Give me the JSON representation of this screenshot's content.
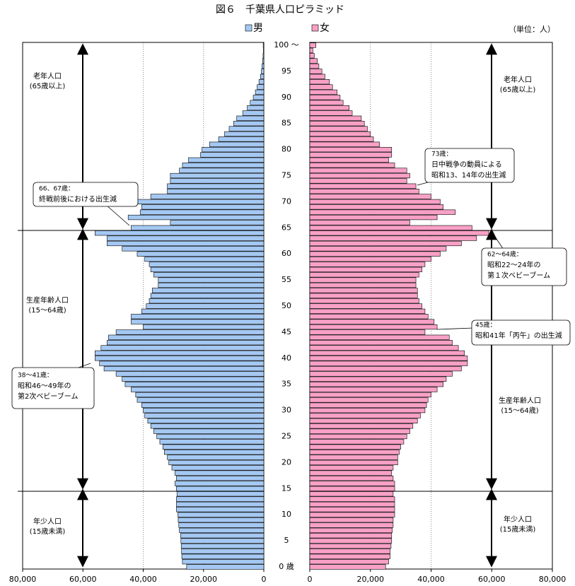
{
  "chart_data": {
    "type": "pyramid",
    "title": "図６　千葉県人口ピラミッド",
    "unit_note": "（単位：人）",
    "categories": [
      "0 歳",
      null,
      null,
      null,
      null,
      "5",
      null,
      null,
      null,
      null,
      "10",
      null,
      null,
      null,
      null,
      "15",
      null,
      null,
      null,
      null,
      "20",
      null,
      null,
      null,
      null,
      "25",
      null,
      null,
      null,
      null,
      "30",
      null,
      null,
      null,
      null,
      "35",
      null,
      null,
      null,
      null,
      "40",
      null,
      null,
      null,
      null,
      "45",
      null,
      null,
      null,
      null,
      "50",
      null,
      null,
      null,
      null,
      "55",
      null,
      null,
      null,
      null,
      "60",
      null,
      null,
      null,
      null,
      "65",
      null,
      null,
      null,
      null,
      "70",
      null,
      null,
      null,
      null,
      "75",
      null,
      null,
      null,
      null,
      "80",
      null,
      null,
      null,
      null,
      "85",
      null,
      null,
      null,
      null,
      "90",
      null,
      null,
      null,
      null,
      "95",
      null,
      null,
      null,
      null,
      "100 ～"
    ],
    "series": [
      {
        "name": "男",
        "color": "#a4c8f2",
        "values": [
          25600,
          27000,
          27200,
          27300,
          27400,
          27500,
          27600,
          28000,
          28200,
          28400,
          28500,
          29000,
          29000,
          29000,
          28800,
          29000,
          29500,
          29000,
          29500,
          30500,
          31500,
          32000,
          33000,
          33500,
          34500,
          35500,
          36500,
          37500,
          38500,
          39500,
          40000,
          40500,
          42000,
          42500,
          44000,
          46000,
          47000,
          49000,
          53000,
          54500,
          56000,
          56000,
          54000,
          52000,
          51500,
          49000,
          40000,
          44000,
          44000,
          40500,
          39000,
          38000,
          37500,
          37000,
          35000,
          35000,
          36500,
          37500,
          38000,
          39500,
          42000,
          47000,
          52000,
          52000,
          56000,
          44000,
          31000,
          45000,
          41000,
          40500,
          42000,
          37500,
          32000,
          32000,
          31000,
          31000,
          28000,
          27000,
          25000,
          21000,
          20500,
          18000,
          15000,
          13000,
          11500,
          10000,
          9000,
          7000,
          5500,
          4500,
          3500,
          2800,
          2200,
          1600,
          1100,
          800,
          600,
          400,
          250,
          150,
          200
        ]
      },
      {
        "name": "女",
        "color": "#f8a0c6",
        "values": [
          25000,
          26000,
          26500,
          26500,
          26800,
          27000,
          27000,
          27200,
          27500,
          27500,
          28000,
          28000,
          28000,
          28000,
          27500,
          28000,
          28000,
          27500,
          27000,
          27500,
          29000,
          29000,
          29500,
          30000,
          31000,
          32000,
          33000,
          34000,
          35500,
          36500,
          38000,
          38500,
          39000,
          40000,
          42000,
          44000,
          45000,
          47000,
          50000,
          52000,
          52000,
          51000,
          49000,
          47000,
          46000,
          38000,
          42000,
          41000,
          39000,
          38000,
          37000,
          36000,
          35500,
          35500,
          35000,
          35000,
          36000,
          37000,
          38000,
          40000,
          43000,
          45000,
          50000,
          55000,
          59000,
          53500,
          33000,
          42000,
          48000,
          44000,
          43000,
          40000,
          36000,
          35000,
          32000,
          33000,
          32000,
          28000,
          26000,
          27000,
          27000,
          23000,
          21000,
          20000,
          19000,
          18000,
          17000,
          14000,
          13000,
          11000,
          10000,
          9000,
          7500,
          6500,
          5000,
          4000,
          3000,
          2500,
          1500,
          1000,
          2000
        ]
      }
    ],
    "xlim": [
      0,
      80000
    ],
    "xticks": [
      0,
      {
        "value": 20000,
        "label": "20,000"
      },
      {
        "value": 40000,
        "label": "40,000"
      },
      {
        "value": 60000,
        "label": "60,000"
      },
      {
        "value": 80000,
        "label": "80,000"
      }
    ],
    "grid": true,
    "age_groups": [
      {
        "name": "老年人口",
        "range": "(65歳以上)"
      },
      {
        "name": "生産年齢人口",
        "range": "(15～64歳)"
      },
      {
        "name": "年少人口",
        "range": "(15歳未満)"
      }
    ],
    "annotations": [
      {
        "lines": [
          "66、67歳：",
          "終戦前後における出生減"
        ]
      },
      {
        "lines": [
          "73歳：",
          "日中戦争の動員による",
          "昭和13、14年の出生減"
        ]
      },
      {
        "lines": [
          "62～64歳：",
          "昭和22～24年の",
          "第１次ベビーブーム"
        ]
      },
      {
        "lines": [
          "45歳：",
          "昭和41年「丙午」の出生減"
        ]
      },
      {
        "lines": [
          "38～41歳：",
          "昭和46～49年の",
          "第2次ベビーブーム"
        ]
      }
    ]
  }
}
